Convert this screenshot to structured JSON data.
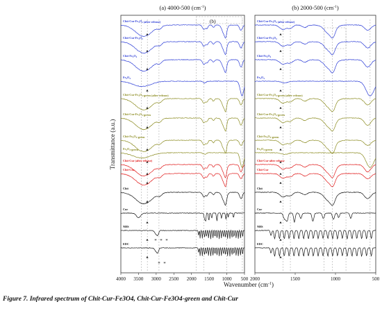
{
  "chart_data": [
    {
      "type": "line",
      "panel": "left",
      "title": "(a) 4000-500 (cm",
      "title_sup": "-1",
      "title_tail": ")",
      "inset_label": "(b)",
      "xlim": [
        4000,
        500
      ],
      "xticks": [
        "4000",
        "3500",
        "3000",
        "2500",
        "2000",
        "1500",
        "1000",
        "500"
      ],
      "series": [
        {
          "name": "Chit-Cur-Fe3O4 (after release)",
          "color": "#2a3bd6"
        },
        {
          "name": "Chit-Cur-Fe3O4",
          "color": "#2a3bd6"
        },
        {
          "name": "Chit-Fe3O4",
          "color": "#2a3bd6"
        },
        {
          "name": "Fe3O4",
          "color": "#2a3bd6"
        },
        {
          "name": "Chit-Cur-Fe3O4-green (after release)",
          "color": "#8a8a1e"
        },
        {
          "name": "Chit-Cur-Fe3O4-green",
          "color": "#8a8a1e"
        },
        {
          "name": "Chit-Fe3O4-green",
          "color": "#8a8a1e"
        },
        {
          "name": "Fe3O4-green",
          "color": "#8a8a1e"
        },
        {
          "name": "Chit-Cur (after release)",
          "color": "#e01818"
        },
        {
          "name": "Chit-Cur",
          "color": "#e01818"
        },
        {
          "name": "Chit",
          "color": "#111111"
        },
        {
          "name": "Cur",
          "color": "#111111"
        },
        {
          "name": "NHS",
          "color": "#111111"
        },
        {
          "name": "EDC",
          "color": "#111111"
        }
      ]
    },
    {
      "type": "line",
      "panel": "right",
      "title": "(b) 2000-500 (cm",
      "title_sup": "-1",
      "title_tail": ")",
      "xlim": [
        2000,
        500
      ],
      "xticks": [
        "2000",
        "1500",
        "1000",
        "500"
      ],
      "series": [
        {
          "name": "Chit-Cur-Fe3O4 (after release)",
          "color": "#2a3bd6"
        },
        {
          "name": "Chit-Cur-Fe3O4",
          "color": "#2a3bd6"
        },
        {
          "name": "Chit-Fe3O4",
          "color": "#2a3bd6"
        },
        {
          "name": "Fe3O4",
          "color": "#2a3bd6"
        },
        {
          "name": "Chit-Cur-Fe3O4-green (after release)",
          "color": "#8a8a1e"
        },
        {
          "name": "Chit-Cur-Fe3O4-green",
          "color": "#8a8a1e"
        },
        {
          "name": "Chit-Fe3O4-green",
          "color": "#8a8a1e"
        },
        {
          "name": "Fe3O4-green",
          "color": "#8a8a1e"
        },
        {
          "name": "Chit-Cur-after release",
          "color": "#e01818"
        },
        {
          "name": "Chit-Cur",
          "color": "#e01818"
        },
        {
          "name": "Chit",
          "color": "#111111"
        },
        {
          "name": "Cur",
          "color": "#111111"
        },
        {
          "name": "NHS",
          "color": "#111111"
        },
        {
          "name": "EDC",
          "color": "#111111"
        }
      ]
    }
  ],
  "axes": {
    "ylabel": "Transmittance (a.u.)",
    "xlabel": "Wavenumber (cm",
    "xlabel_sup": "-1",
    "xlabel_tail": ")"
  },
  "caption": {
    "label": "Figure 7.",
    "text": "Infrared spectrum of Chit-Cur-Fe3O4, Chit-Cur-Fe3O4-green and Chit-Cur"
  }
}
